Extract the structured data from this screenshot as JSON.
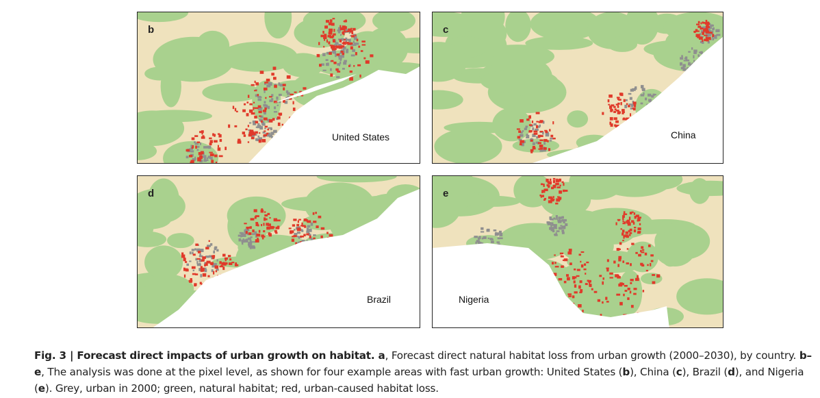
{
  "panels": [
    {
      "letter": "b",
      "label": "United States"
    },
    {
      "letter": "c",
      "label": "China"
    },
    {
      "letter": "d",
      "label": "Brazil"
    },
    {
      "letter": "e",
      "label": "Nigeria"
    }
  ],
  "caption": {
    "runs": [
      {
        "text": "Fig. 3 | Forecast direct impacts of urban growth on habitat. a",
        "bold": true
      },
      {
        "text": ", Forecast direct natural habitat loss from urban growth (2000–2030), by country. ",
        "bold": false
      },
      {
        "text": "b–e",
        "bold": true
      },
      {
        "text": ", The analysis was done at the pixel level, as shown for four example areas with fast urban growth: United States (",
        "bold": false
      },
      {
        "text": "b",
        "bold": true
      },
      {
        "text": "), China (",
        "bold": false
      },
      {
        "text": "c",
        "bold": true
      },
      {
        "text": "), Brazil (",
        "bold": false
      },
      {
        "text": "d",
        "bold": true
      },
      {
        "text": "), and Nigeria (",
        "bold": false
      },
      {
        "text": "e",
        "bold": true
      },
      {
        "text": "). Grey, urban in 2000; green, natural habitat; red, urban-caused habitat loss.",
        "bold": false
      }
    ]
  }
}
